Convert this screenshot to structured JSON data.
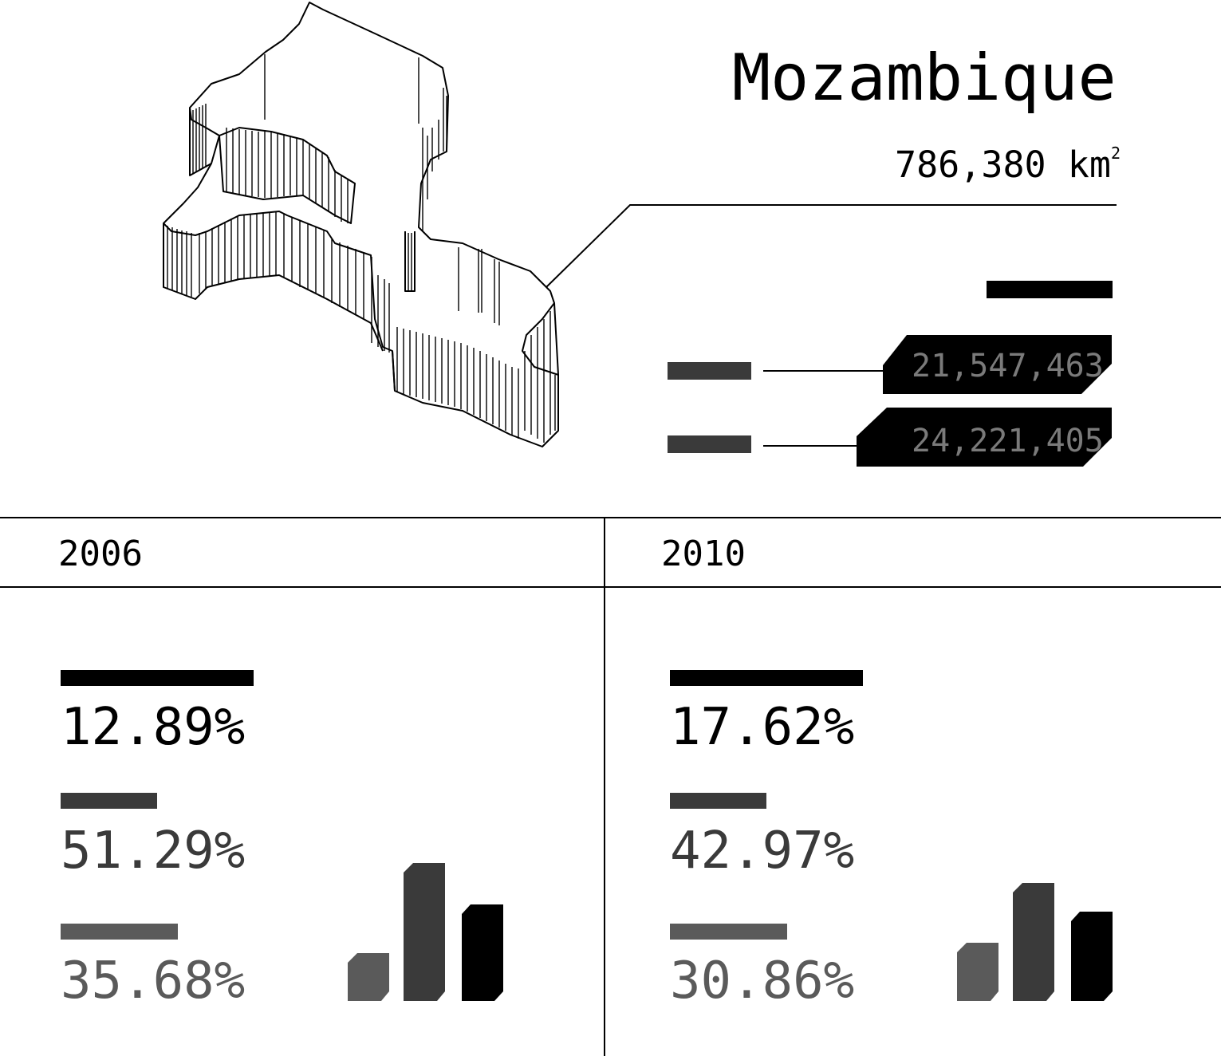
{
  "country": {
    "name": "Mozambique",
    "area_value": "786,380 km",
    "area_superscript": "2"
  },
  "population": [
    {
      "value": "21,547,463"
    },
    {
      "value": "24,221,405"
    }
  ],
  "years": [
    {
      "label": "2006",
      "shares": [
        {
          "label": "12.89%",
          "value": 12.89,
          "color": "#000000"
        },
        {
          "label": "51.29%",
          "value": 51.29,
          "color": "#3a3a3a"
        },
        {
          "label": "35.68%",
          "value": 35.68,
          "color": "#5a5a5a"
        }
      ]
    },
    {
      "label": "2010",
      "shares": [
        {
          "label": "17.62%",
          "value": 17.62,
          "color": "#000000"
        },
        {
          "label": "42.97%",
          "value": 42.97,
          "color": "#3a3a3a"
        },
        {
          "label": "30.86%",
          "value": 30.86,
          "color": "#5a5a5a"
        }
      ]
    }
  ],
  "colors": {
    "black": "#000000",
    "dark_gray": "#3a3a3a",
    "mid_gray": "#5a5a5a",
    "label_gray": "#7a7a7a"
  }
}
